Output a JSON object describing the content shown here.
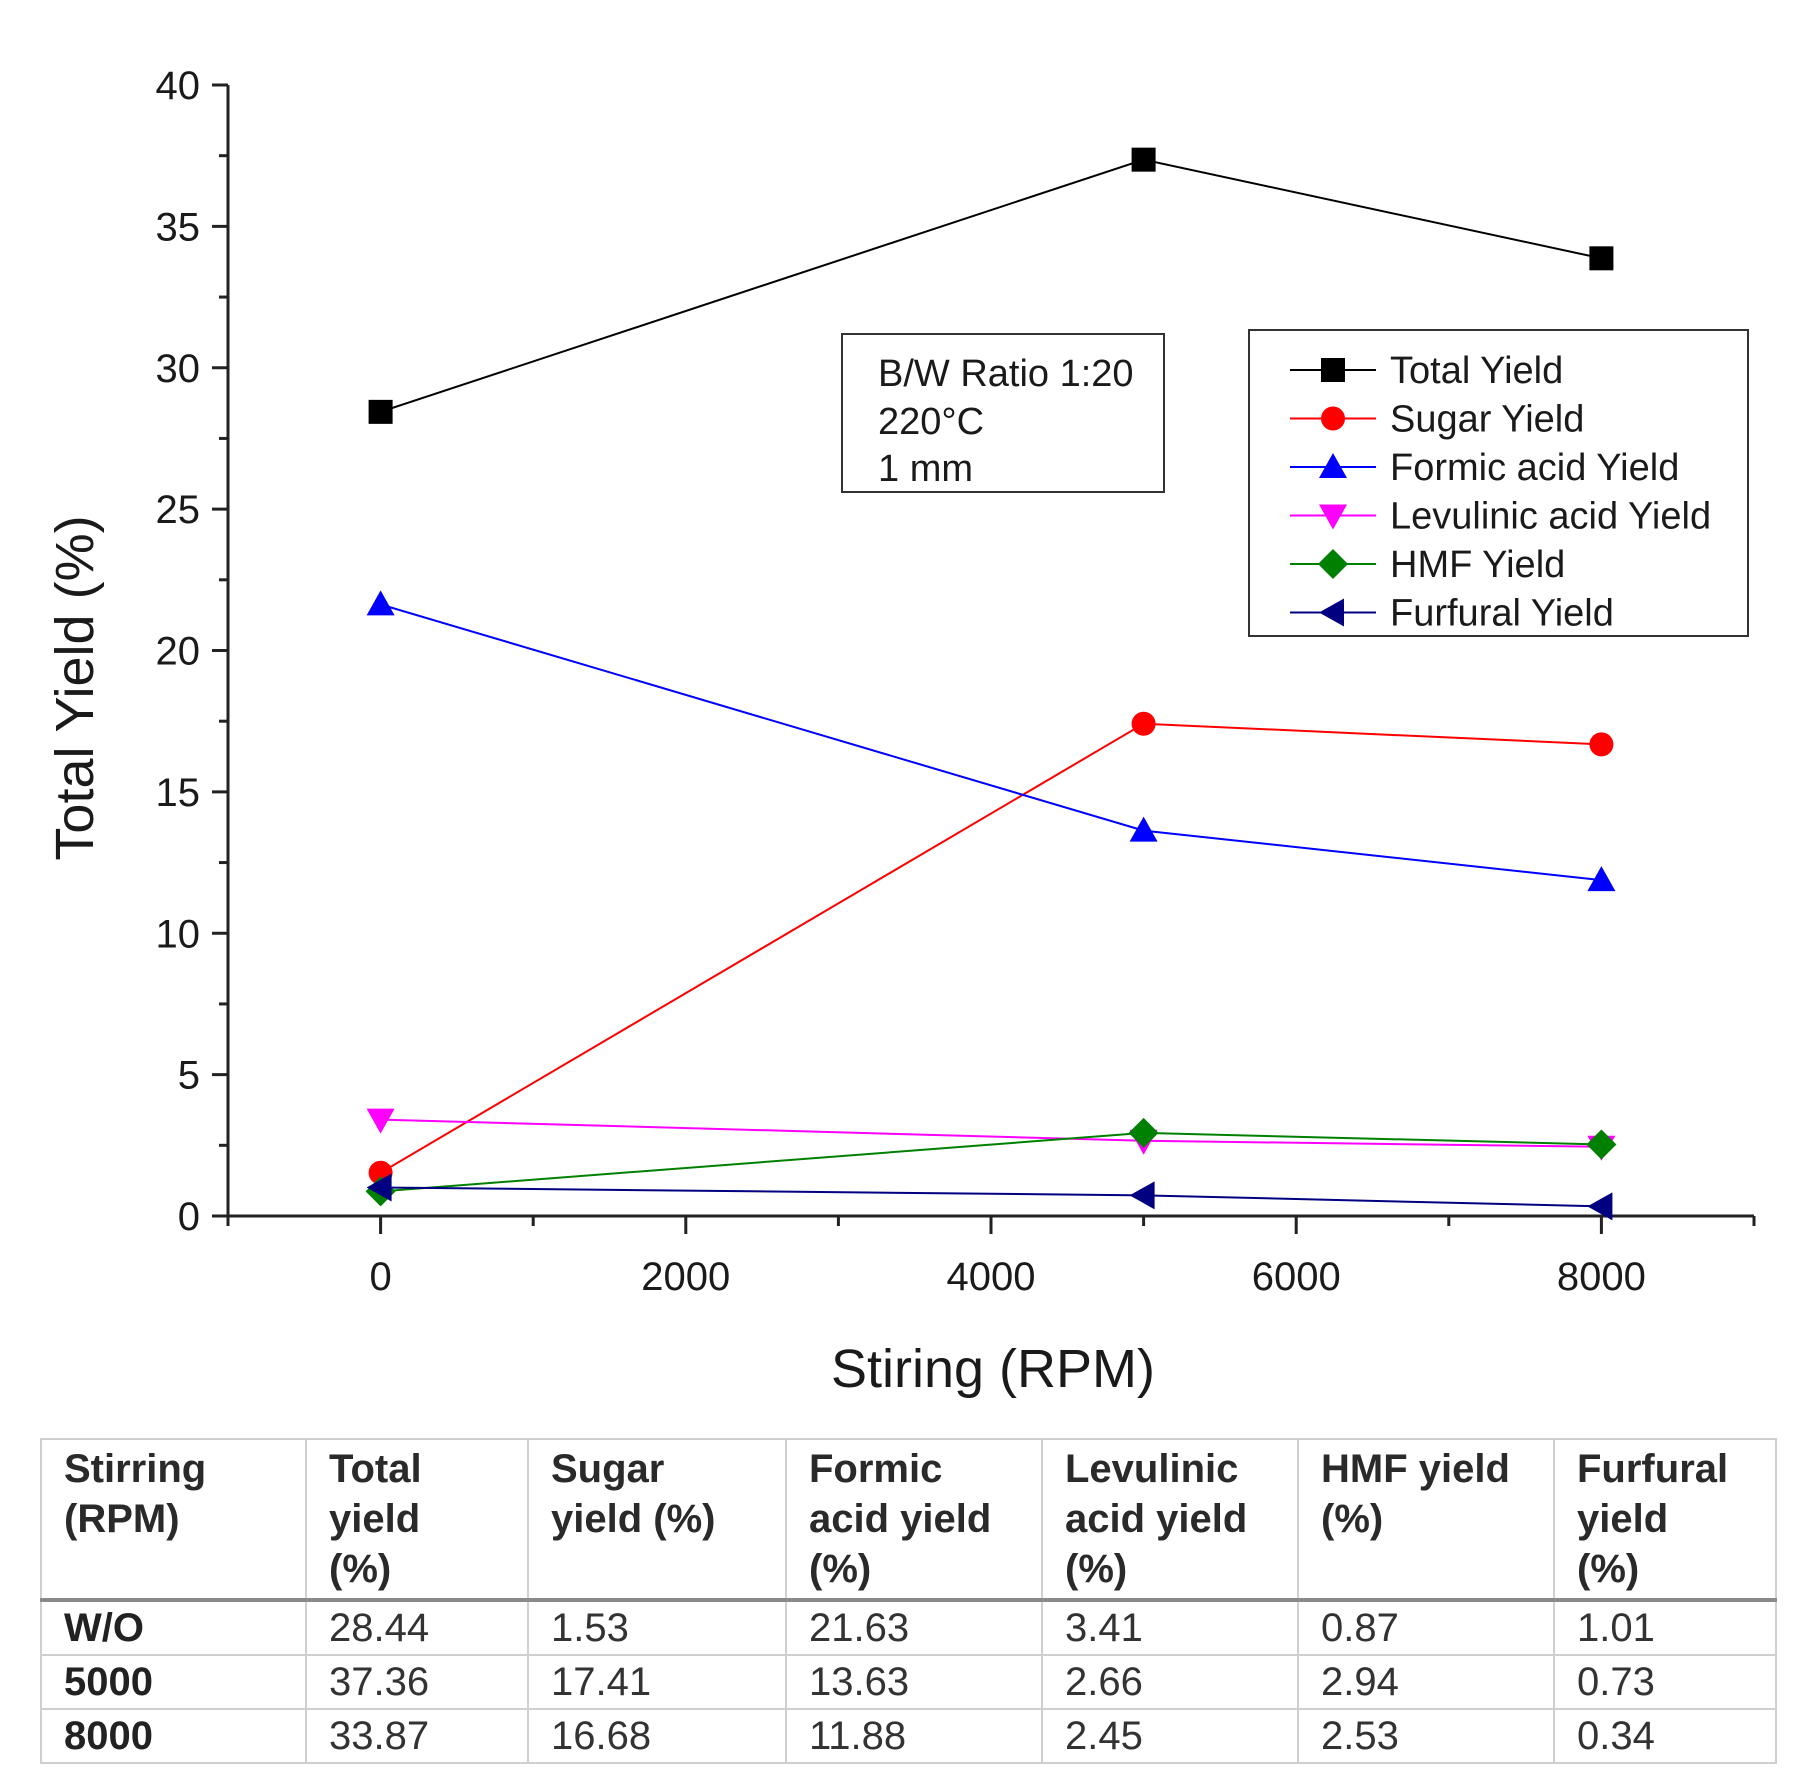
{
  "chart_data": {
    "type": "line",
    "title": "",
    "xlabel": "Stiring (RPM)",
    "ylabel": "Total Yield (%)",
    "xlim": [
      -1000,
      9000
    ],
    "ylim": [
      0,
      40
    ],
    "xticks": [
      0,
      2000,
      4000,
      6000,
      8000
    ],
    "yticks": [
      0,
      5,
      10,
      15,
      20,
      25,
      30,
      35,
      40
    ],
    "x": [
      0,
      5000,
      8000
    ],
    "grid": false,
    "legend_position": "top-right",
    "series": [
      {
        "name": "Total Yield",
        "values": [
          28.44,
          37.36,
          33.87
        ],
        "color": "#000000",
        "marker": "square"
      },
      {
        "name": "Sugar Yield",
        "values": [
          1.53,
          17.41,
          16.68
        ],
        "color": "#ff0000",
        "marker": "circle"
      },
      {
        "name": "Formic acid Yield",
        "values": [
          21.63,
          13.63,
          11.88
        ],
        "color": "#0000ff",
        "marker": "triangle-up"
      },
      {
        "name": "Levulinic acid Yield",
        "values": [
          3.41,
          2.66,
          2.45
        ],
        "color": "#ff00ff",
        "marker": "triangle-down"
      },
      {
        "name": "HMF Yield",
        "values": [
          0.87,
          2.94,
          2.53
        ],
        "color": "#008000",
        "marker": "diamond"
      },
      {
        "name": "Furfural Yield",
        "values": [
          1.01,
          0.73,
          0.34
        ],
        "color": "#000080",
        "marker": "triangle-left"
      }
    ],
    "annotation": [
      "B/W Ratio 1:20",
      "220°C",
      "1 mm"
    ]
  },
  "table": {
    "headers": [
      [
        "Stirring",
        "(RPM)"
      ],
      [
        "Total",
        "yield",
        "(%)"
      ],
      [
        "Sugar",
        "yield (%)"
      ],
      [
        "Formic",
        "acid yield",
        "(%)"
      ],
      [
        "Levulinic",
        "acid yield",
        "(%)"
      ],
      [
        "HMF yield",
        "(%)"
      ],
      [
        "Furfural",
        "yield",
        "(%)"
      ]
    ],
    "rows": [
      [
        "W/O",
        "28.44",
        "1.53",
        "21.63",
        "3.41",
        "0.87",
        "1.01"
      ],
      [
        "5000",
        "37.36",
        "17.41",
        "13.63",
        "2.66",
        "2.94",
        "0.73"
      ],
      [
        "8000",
        "33.87",
        "16.68",
        "11.88",
        "2.45",
        "2.53",
        "0.34"
      ]
    ]
  }
}
